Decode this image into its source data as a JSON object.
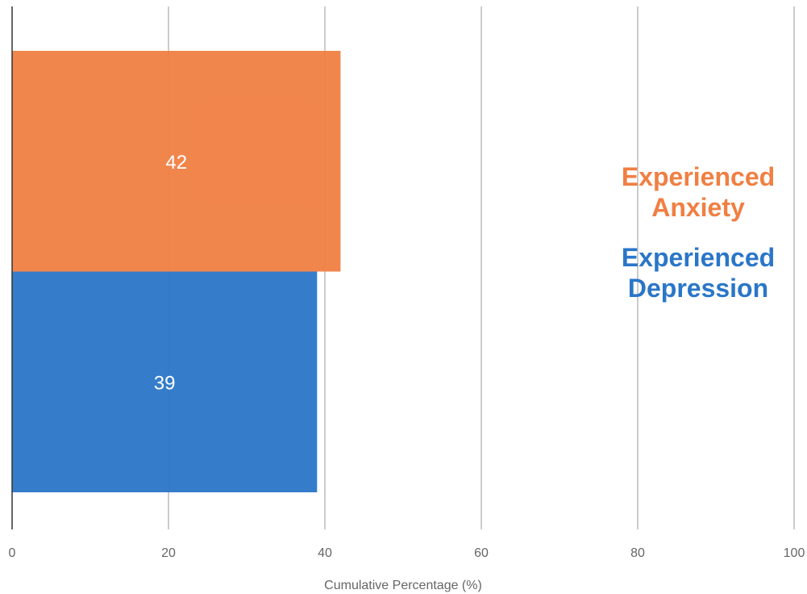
{
  "chart_data": {
    "type": "bar",
    "orientation": "horizontal",
    "stacked": true,
    "xlabel": "Cumulative Percentage (%)",
    "ylabel": "",
    "xlim": [
      0,
      100
    ],
    "xticks": [
      "0",
      "20",
      "40",
      "60",
      "80",
      "100"
    ],
    "grid": true,
    "legend_position": "right",
    "series": [
      {
        "name": "Experienced Anxiety",
        "legend_lines": [
          "Experienced",
          "Anxiety"
        ],
        "value": 42,
        "label": "42",
        "color": "#f07f43"
      },
      {
        "name": "Experienced Depression",
        "legend_lines": [
          "Experienced",
          "Depression"
        ],
        "value": 39,
        "label": "39",
        "color": "#2a76c8"
      }
    ]
  }
}
